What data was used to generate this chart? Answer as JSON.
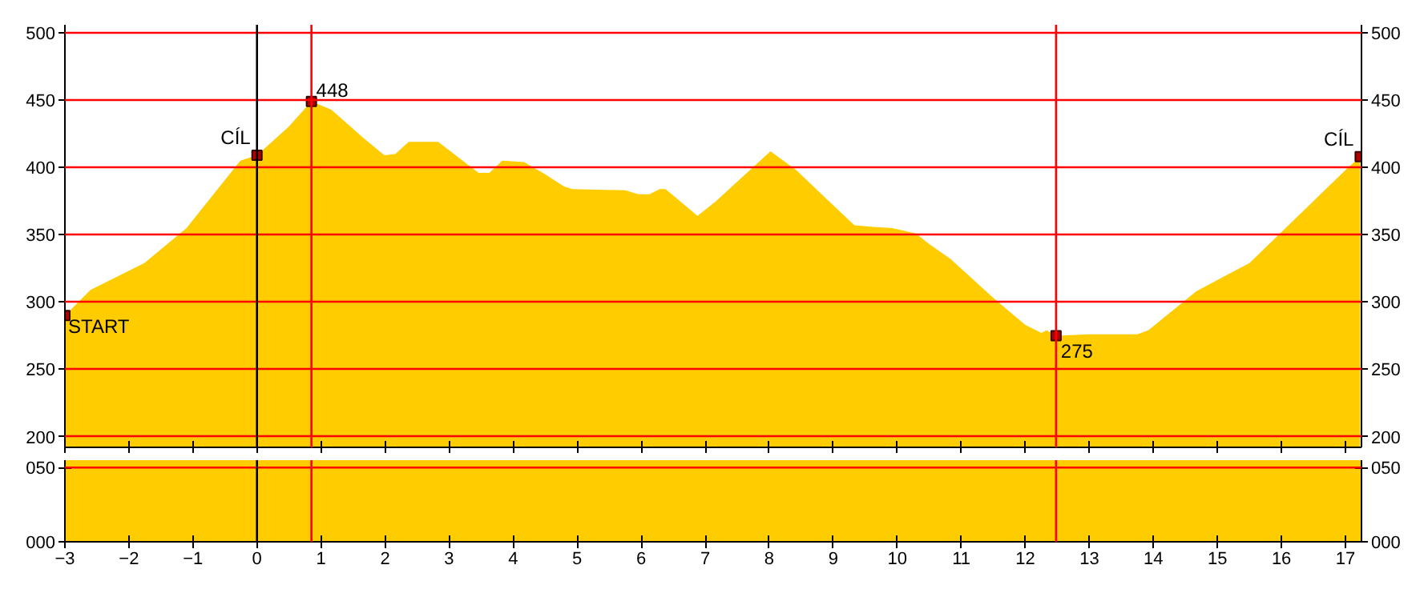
{
  "chart_data": [
    {
      "type": "area",
      "xlim": [
        -3,
        17.25
      ],
      "ylim": [
        192,
        506
      ],
      "y2lim": [
        192,
        506
      ],
      "yticks": [
        200,
        250,
        300,
        350,
        400,
        450,
        500
      ],
      "y2ticks": [
        200,
        250,
        300,
        350,
        400,
        450,
        500
      ],
      "xticks": [
        -3,
        -2,
        -1,
        0,
        1,
        2,
        3,
        4,
        5,
        6,
        7,
        8,
        9,
        10,
        11,
        12,
        13,
        14,
        15,
        16,
        17
      ],
      "tick_labels": "y",
      "grid": "y",
      "series": [
        {
          "color": "#ffcc00",
          "x": [
            -3,
            -2.6,
            -1.76,
            -1.1,
            -0.26,
            0,
            0.49,
            0.85,
            1.16,
            1.66,
            1.99,
            2.16,
            2.37,
            2.83,
            3.24,
            3.46,
            3.63,
            3.83,
            4.17,
            4.5,
            4.79,
            4.92,
            5.75,
            5.96,
            6.13,
            6.29,
            6.38,
            6.88,
            7.17,
            8.02,
            8.42,
            9.33,
            9.58,
            9.92,
            10.29,
            10.5,
            10.83,
            11.5,
            12,
            12.25,
            12.33,
            12.48,
            13,
            13.75,
            13.92,
            14.67,
            15.5,
            16,
            17,
            17.23
          ],
          "values": [
            290,
            309,
            329,
            355,
            405,
            409,
            430,
            449,
            443,
            422,
            409,
            410,
            419,
            419,
            404,
            396,
            396,
            405,
            404,
            395,
            386,
            384,
            383,
            380,
            380,
            384,
            384,
            364,
            375,
            412,
            398,
            357,
            356,
            355,
            351,
            343,
            332,
            303,
            283,
            277,
            279,
            275,
            276,
            276,
            279,
            308,
            329,
            352,
            398,
            408
          ]
        },
        {
          "type": "scatter",
          "marker": "square",
          "color": "#b00000",
          "x": [
            -3,
            0,
            0.85,
            12.48,
            17.23
          ],
          "values": [
            290,
            409,
            449,
            275,
            408
          ]
        }
      ],
      "ref_lines": [
        {
          "axis": "x",
          "value": 0,
          "color": "#000000"
        },
        {
          "axis": "x",
          "value": 0.85,
          "color": "#ff0000"
        },
        {
          "axis": "x",
          "value": 12.48,
          "color": "#ff0000"
        }
      ],
      "annotations": [
        {
          "text": "START",
          "x": -3,
          "y": 290
        },
        {
          "text": "CÍL",
          "x": 0,
          "y": 409
        },
        {
          "text": "448",
          "x": 0.85,
          "y": 449
        },
        {
          "text": "275",
          "x": 12.48,
          "y": 275
        },
        {
          "text": "CÍL",
          "x": 17.23,
          "y": 408
        }
      ]
    },
    {
      "type": "area",
      "xlim": [
        -3,
        17.25
      ],
      "ylim": [
        0,
        55
      ],
      "y2lim": [
        0,
        55
      ],
      "yticks": [
        {
          "value": 0,
          "label": "000"
        },
        {
          "value": 50,
          "label": "050"
        }
      ],
      "y2ticks": [
        {
          "value": 0,
          "label": "000"
        },
        {
          "value": 50,
          "label": "050"
        }
      ],
      "xticks": [
        -3,
        -2,
        -1,
        0,
        1,
        2,
        3,
        4,
        5,
        6,
        7,
        8,
        9,
        10,
        11,
        12,
        13,
        14,
        15,
        16,
        17
      ],
      "bands": [
        {
          "axis": "y",
          "from": 0,
          "to": 55,
          "color": "#ffcc00"
        }
      ],
      "ref_lines": [
        {
          "axis": "y",
          "value": 50,
          "color": "#ff0000"
        },
        {
          "axis": "x",
          "value": 0,
          "color": "#000000"
        },
        {
          "axis": "x",
          "value": 0.85,
          "color": "#ff0000"
        },
        {
          "axis": "x",
          "value": 12.48,
          "color": "#ff0000"
        }
      ]
    }
  ]
}
